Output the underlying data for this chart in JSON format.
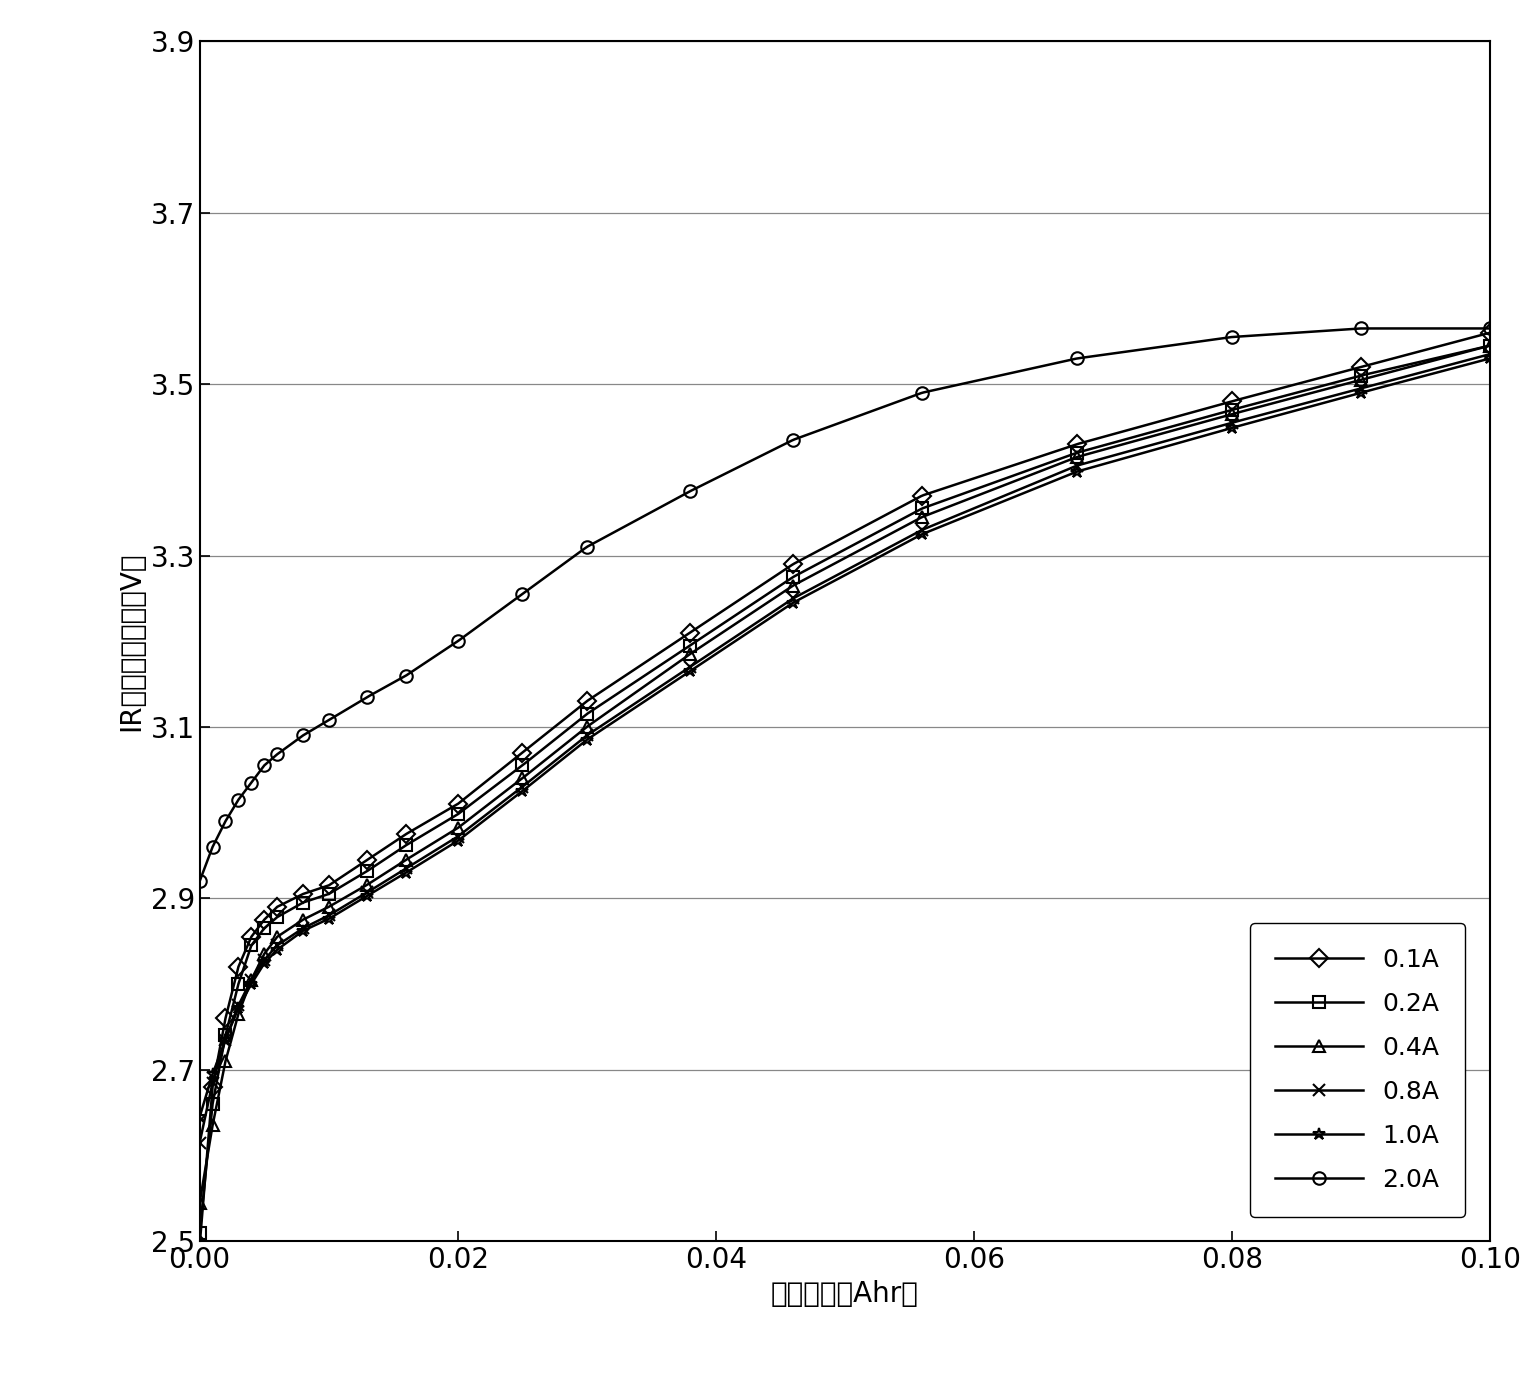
{
  "title": "",
  "xlabel": "剩余容量（Ahr）",
  "ylabel": "IR校正后的电压（V）",
  "xlim": [
    0.0,
    0.1
  ],
  "ylim": [
    2.5,
    3.9
  ],
  "xticks": [
    0.0,
    0.02,
    0.04,
    0.06,
    0.08,
    0.1
  ],
  "yticks": [
    2.5,
    2.7,
    2.9,
    3.1,
    3.3,
    3.5,
    3.7,
    3.9
  ],
  "series": [
    {
      "label": "0.1A",
      "marker": "D",
      "x": [
        0.0,
        0.001,
        0.002,
        0.003,
        0.004,
        0.005,
        0.006,
        0.008,
        0.01,
        0.013,
        0.016,
        0.02,
        0.025,
        0.03,
        0.038,
        0.046,
        0.056,
        0.068,
        0.08,
        0.09,
        0.1
      ],
      "y": [
        2.495,
        2.68,
        2.76,
        2.82,
        2.855,
        2.875,
        2.89,
        2.905,
        2.915,
        2.945,
        2.975,
        3.01,
        3.07,
        3.13,
        3.21,
        3.29,
        3.37,
        3.43,
        3.48,
        3.52,
        3.56
      ]
    },
    {
      "label": "0.2A",
      "marker": "s",
      "x": [
        0.0,
        0.001,
        0.002,
        0.003,
        0.004,
        0.005,
        0.006,
        0.008,
        0.01,
        0.013,
        0.016,
        0.02,
        0.025,
        0.03,
        0.038,
        0.046,
        0.056,
        0.068,
        0.08,
        0.09,
        0.1
      ],
      "y": [
        2.51,
        2.66,
        2.74,
        2.8,
        2.845,
        2.865,
        2.878,
        2.895,
        2.905,
        2.932,
        2.962,
        2.998,
        3.055,
        3.115,
        3.195,
        3.275,
        3.355,
        3.42,
        3.47,
        3.51,
        3.545
      ]
    },
    {
      "label": "0.4A",
      "marker": "^",
      "x": [
        0.0,
        0.001,
        0.002,
        0.003,
        0.004,
        0.005,
        0.006,
        0.008,
        0.01,
        0.013,
        0.016,
        0.02,
        0.025,
        0.03,
        0.038,
        0.046,
        0.056,
        0.068,
        0.08,
        0.09,
        0.1
      ],
      "y": [
        2.545,
        2.635,
        2.71,
        2.765,
        2.805,
        2.835,
        2.855,
        2.875,
        2.89,
        2.916,
        2.945,
        2.982,
        3.04,
        3.1,
        3.185,
        3.265,
        3.345,
        3.415,
        3.465,
        3.505,
        3.545
      ]
    },
    {
      "label": "0.8A",
      "marker": "x",
      "x": [
        0.0,
        0.001,
        0.002,
        0.003,
        0.004,
        0.005,
        0.006,
        0.008,
        0.01,
        0.013,
        0.016,
        0.02,
        0.025,
        0.03,
        0.038,
        0.046,
        0.056,
        0.068,
        0.08,
        0.09,
        0.1
      ],
      "y": [
        2.615,
        2.685,
        2.735,
        2.775,
        2.805,
        2.828,
        2.845,
        2.865,
        2.88,
        2.907,
        2.935,
        2.972,
        3.03,
        3.09,
        3.17,
        3.25,
        3.33,
        3.405,
        3.455,
        3.495,
        3.535
      ]
    },
    {
      "label": "1.0A",
      "marker": "*",
      "x": [
        0.0,
        0.001,
        0.002,
        0.003,
        0.004,
        0.005,
        0.006,
        0.008,
        0.01,
        0.013,
        0.016,
        0.02,
        0.025,
        0.03,
        0.038,
        0.046,
        0.056,
        0.068,
        0.08,
        0.09,
        0.1
      ],
      "y": [
        2.645,
        2.695,
        2.735,
        2.772,
        2.8,
        2.824,
        2.84,
        2.862,
        2.876,
        2.903,
        2.93,
        2.967,
        3.025,
        3.085,
        3.165,
        3.245,
        3.325,
        3.398,
        3.449,
        3.49,
        3.53
      ]
    },
    {
      "label": "2.0A",
      "marker": "o",
      "x": [
        0.0,
        0.001,
        0.002,
        0.003,
        0.004,
        0.005,
        0.006,
        0.008,
        0.01,
        0.013,
        0.016,
        0.02,
        0.025,
        0.03,
        0.038,
        0.046,
        0.056,
        0.068,
        0.08,
        0.09,
        0.1
      ],
      "y": [
        2.92,
        2.96,
        2.99,
        3.015,
        3.035,
        3.055,
        3.068,
        3.09,
        3.108,
        3.135,
        3.16,
        3.2,
        3.255,
        3.31,
        3.375,
        3.435,
        3.49,
        3.53,
        3.555,
        3.565,
        3.565
      ]
    }
  ],
  "background_color": "#ffffff",
  "grid_color": "#888888",
  "marker_size": 9,
  "linewidth": 1.8,
  "xlabel_fontsize": 20,
  "ylabel_fontsize": 20,
  "tick_fontsize": 20,
  "legend_fontsize": 18
}
